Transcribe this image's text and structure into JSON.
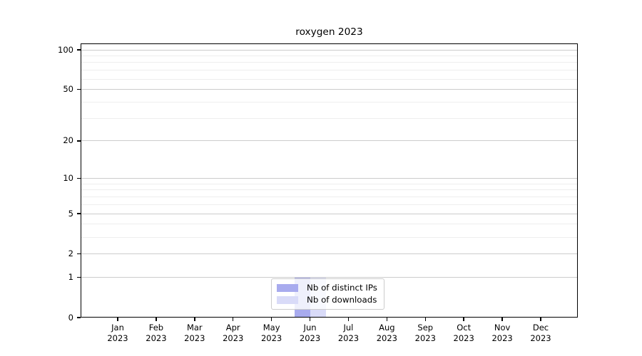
{
  "chart_data": {
    "type": "bar",
    "title": "roxygen 2023",
    "x": {
      "months": [
        "Jan",
        "Feb",
        "Mar",
        "Apr",
        "May",
        "Jun",
        "Jul",
        "Aug",
        "Sep",
        "Oct",
        "Nov",
        "Dec"
      ],
      "year": "2023"
    },
    "series": [
      {
        "name": "Nb of distinct IPs",
        "color": "#a8abee",
        "values": [
          0,
          0,
          0,
          0,
          0,
          1,
          0,
          0,
          0,
          0,
          0,
          0
        ]
      },
      {
        "name": "Nb of downloads",
        "color": "#d9dbf8",
        "values": [
          0,
          0,
          0,
          0,
          0,
          1,
          0,
          0,
          0,
          0,
          0,
          0
        ]
      }
    ],
    "yscale": "log1p",
    "y_major_ticks": [
      0,
      1,
      2,
      5,
      10,
      20,
      50,
      100
    ],
    "y_minor_gridlines": [
      3,
      4,
      6,
      7,
      8,
      9,
      30,
      40,
      60,
      70,
      80,
      90
    ],
    "ylim": [
      0,
      110
    ],
    "grid": "horizontal",
    "legend_position": "lower center",
    "colors": {
      "major_grid": "#cccccc",
      "minor_grid": "#eeeeee",
      "axis": "#000000"
    }
  }
}
